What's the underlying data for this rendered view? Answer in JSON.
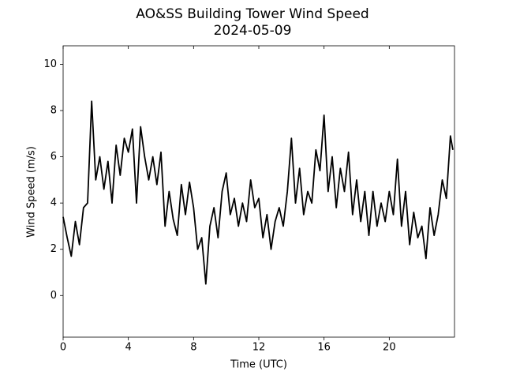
{
  "chart_data": {
    "type": "line",
    "title": "AO&SS Building Tower Wind Speed",
    "subtitle": "2024-05-09",
    "x_label": "Time (UTC)",
    "y_label": "Wind Speed (m/s)",
    "color": "#000000",
    "x": [
      0,
      0.25,
      0.5,
      0.75,
      1,
      1.25,
      1.5,
      1.75,
      2,
      2.25,
      2.5,
      2.75,
      3,
      3.25,
      3.5,
      3.75,
      4,
      4.25,
      4.5,
      4.75,
      5,
      5.25,
      5.5,
      5.75,
      6,
      6.25,
      6.5,
      6.75,
      7,
      7.25,
      7.5,
      7.75,
      8,
      8.25,
      8.5,
      8.75,
      9,
      9.25,
      9.5,
      9.75,
      10,
      10.25,
      10.5,
      10.75,
      11,
      11.25,
      11.5,
      11.75,
      12,
      12.25,
      12.5,
      12.75,
      13,
      13.25,
      13.5,
      13.75,
      14,
      14.25,
      14.5,
      14.75,
      15,
      15.25,
      15.5,
      15.75,
      16,
      16.25,
      16.5,
      16.75,
      17,
      17.25,
      17.5,
      17.75,
      18,
      18.25,
      18.5,
      18.75,
      19,
      19.25,
      19.5,
      19.75,
      20,
      20.25,
      20.5,
      20.75,
      21,
      21.25,
      21.5,
      21.75,
      22,
      22.25,
      22.5,
      22.75,
      23,
      23.25,
      23.5,
      23.75,
      23.9
    ],
    "values": [
      3.4,
      2.5,
      1.7,
      3.2,
      2.2,
      3.8,
      4.0,
      8.4,
      5.0,
      6.0,
      4.6,
      5.8,
      4.0,
      6.5,
      5.2,
      6.8,
      6.2,
      7.2,
      4.0,
      7.3,
      6.0,
      5.0,
      6.0,
      4.8,
      6.2,
      3.0,
      4.5,
      3.3,
      2.6,
      4.8,
      3.5,
      4.9,
      3.8,
      2.0,
      2.5,
      0.5,
      3.0,
      3.8,
      2.5,
      4.5,
      5.3,
      3.5,
      4.2,
      3.0,
      4.0,
      3.2,
      5.0,
      3.8,
      4.2,
      2.5,
      3.5,
      2.0,
      3.2,
      3.8,
      3.0,
      4.5,
      6.8,
      4.0,
      5.5,
      3.5,
      4.5,
      4.0,
      6.3,
      5.4,
      7.8,
      4.5,
      6.0,
      3.8,
      5.5,
      4.5,
      6.2,
      3.5,
      5.0,
      3.2,
      4.5,
      2.6,
      4.5,
      3.0,
      4.0,
      3.2,
      4.5,
      3.5,
      5.9,
      3.0,
      4.5,
      2.2,
      3.6,
      2.5,
      3.0,
      1.6,
      3.8,
      2.6,
      3.5,
      5.0,
      4.2,
      6.9,
      6.3
    ],
    "xlim": [
      0,
      24
    ],
    "ylim": [
      -1.8,
      10.8
    ],
    "xticks": [
      0,
      4,
      8,
      12,
      16,
      20
    ],
    "yticks": [
      0,
      2,
      4,
      6,
      8,
      10
    ]
  }
}
